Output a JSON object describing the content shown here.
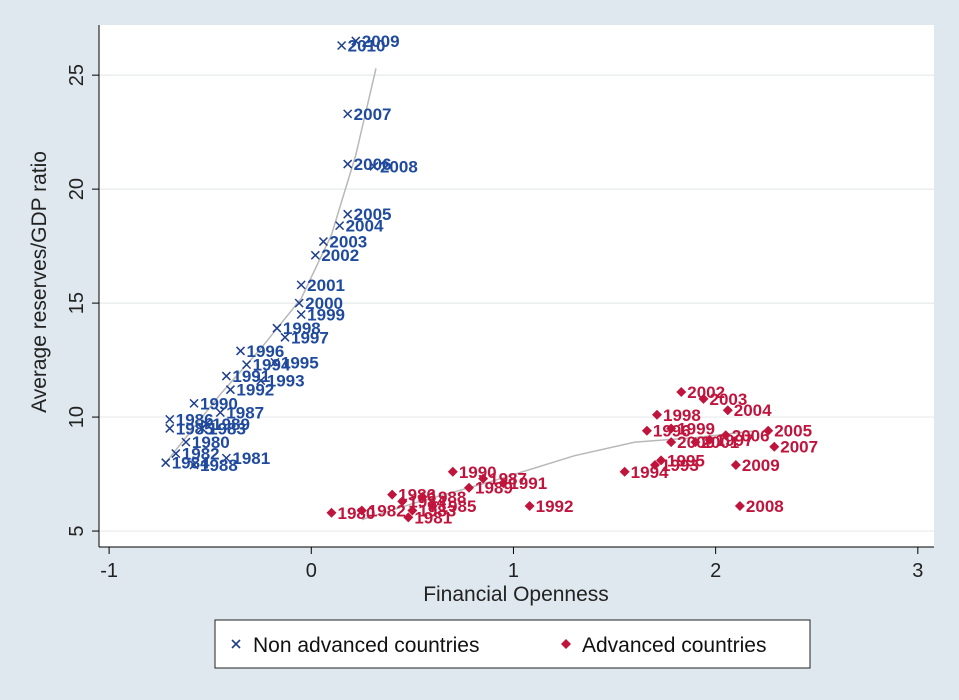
{
  "chart_data": {
    "type": "scatter",
    "xlabel": "Financial Openness",
    "ylabel": "Average reserves/GDP ratio",
    "xlim": [
      -1.05,
      3.08
    ],
    "ylim": [
      4.3,
      27.2
    ],
    "xticks": [
      -1,
      0,
      1,
      2,
      3
    ],
    "yticks": [
      5,
      10,
      15,
      20,
      25
    ],
    "grid": "horizontal",
    "legend_position": "bottom",
    "colors": {
      "non_advanced": "#1f3f8c",
      "non_advanced_label": "#1f4a9e",
      "advanced": "#c0143c",
      "fit_line": "#b8b8b8",
      "plot_bg": "#ffffff",
      "page_bg": "#dfe8ee"
    },
    "series": [
      {
        "name": "Non advanced countries",
        "marker": "x",
        "points": [
          {
            "x": 0.22,
            "y": 26.5,
            "label": "2009"
          },
          {
            "x": 0.15,
            "y": 26.3,
            "label": "2010"
          },
          {
            "x": 0.18,
            "y": 23.3,
            "label": "2007"
          },
          {
            "x": 0.31,
            "y": 21.0,
            "label": "2008"
          },
          {
            "x": 0.18,
            "y": 21.1,
            "label": "2006"
          },
          {
            "x": 0.18,
            "y": 18.9,
            "label": "2005"
          },
          {
            "x": 0.14,
            "y": 18.4,
            "label": "2004"
          },
          {
            "x": 0.06,
            "y": 17.7,
            "label": "2003"
          },
          {
            "x": 0.02,
            "y": 17.1,
            "label": "2002"
          },
          {
            "x": -0.05,
            "y": 15.8,
            "label": "2001"
          },
          {
            "x": -0.06,
            "y": 15.0,
            "label": "2000"
          },
          {
            "x": -0.05,
            "y": 14.5,
            "label": "1999"
          },
          {
            "x": -0.17,
            "y": 13.9,
            "label": "1998"
          },
          {
            "x": -0.13,
            "y": 13.5,
            "label": "1997"
          },
          {
            "x": -0.35,
            "y": 12.9,
            "label": "1996"
          },
          {
            "x": -0.18,
            "y": 12.4,
            "label": "1995"
          },
          {
            "x": -0.32,
            "y": 12.3,
            "label": "1994"
          },
          {
            "x": -0.42,
            "y": 11.8,
            "label": "1991"
          },
          {
            "x": -0.25,
            "y": 11.6,
            "label": "1993"
          },
          {
            "x": -0.4,
            "y": 11.2,
            "label": "1992"
          },
          {
            "x": -0.58,
            "y": 10.6,
            "label": "1990"
          },
          {
            "x": -0.45,
            "y": 10.2,
            "label": "1987"
          },
          {
            "x": -0.7,
            "y": 9.9,
            "label": "1986"
          },
          {
            "x": -0.52,
            "y": 9.7,
            "label": "1989"
          },
          {
            "x": -0.7,
            "y": 9.5,
            "label": "1985"
          },
          {
            "x": -0.54,
            "y": 9.5,
            "label": "1983"
          },
          {
            "x": -0.62,
            "y": 8.9,
            "label": "1980"
          },
          {
            "x": -0.67,
            "y": 8.4,
            "label": "1982"
          },
          {
            "x": -0.42,
            "y": 8.2,
            "label": "1981"
          },
          {
            "x": -0.72,
            "y": 8.0,
            "label": "1984"
          },
          {
            "x": -0.58,
            "y": 7.9,
            "label": "1988"
          }
        ]
      },
      {
        "name": "Advanced countries",
        "marker": "diamond",
        "points": [
          {
            "x": 1.83,
            "y": 11.1,
            "label": "2002"
          },
          {
            "x": 1.94,
            "y": 10.8,
            "label": "2003"
          },
          {
            "x": 2.06,
            "y": 10.3,
            "label": "2004"
          },
          {
            "x": 1.71,
            "y": 10.1,
            "label": "1998"
          },
          {
            "x": 2.26,
            "y": 9.4,
            "label": "2005"
          },
          {
            "x": 1.66,
            "y": 9.4,
            "label": "1996"
          },
          {
            "x": 1.78,
            "y": 9.5,
            "label": "1999"
          },
          {
            "x": 2.05,
            "y": 9.2,
            "label": "2006"
          },
          {
            "x": 1.97,
            "y": 9.0,
            "label": "1997"
          },
          {
            "x": 1.9,
            "y": 8.9,
            "label": "2001"
          },
          {
            "x": 1.78,
            "y": 8.9,
            "label": "2000"
          },
          {
            "x": 2.29,
            "y": 8.7,
            "label": "2007"
          },
          {
            "x": 1.73,
            "y": 8.1,
            "label": "1995"
          },
          {
            "x": 1.55,
            "y": 7.6,
            "label": "1994"
          },
          {
            "x": 1.7,
            "y": 7.9,
            "label": "1993"
          },
          {
            "x": 2.1,
            "y": 7.9,
            "label": "2009"
          },
          {
            "x": 0.7,
            "y": 7.6,
            "label": "1990"
          },
          {
            "x": 0.85,
            "y": 7.3,
            "label": "1987"
          },
          {
            "x": 0.95,
            "y": 7.1,
            "label": "1991"
          },
          {
            "x": 0.78,
            "y": 6.9,
            "label": "1989"
          },
          {
            "x": 0.4,
            "y": 6.6,
            "label": "1986"
          },
          {
            "x": 0.55,
            "y": 6.5,
            "label": "1988"
          },
          {
            "x": 0.45,
            "y": 6.3,
            "label": "1984"
          },
          {
            "x": 0.6,
            "y": 6.1,
            "label": "1985"
          },
          {
            "x": 1.08,
            "y": 6.1,
            "label": "1992"
          },
          {
            "x": 0.5,
            "y": 5.9,
            "label": "1983"
          },
          {
            "x": 0.25,
            "y": 5.9,
            "label": "1982"
          },
          {
            "x": 2.12,
            "y": 6.1,
            "label": "2008"
          },
          {
            "x": 0.1,
            "y": 5.8,
            "label": "1980"
          },
          {
            "x": 0.48,
            "y": 5.6,
            "label": "1981"
          }
        ]
      }
    ],
    "fit_lines": [
      {
        "series": "Non advanced countries",
        "points": [
          [
            -0.72,
            8.0
          ],
          [
            -0.45,
            11.0
          ],
          [
            -0.25,
            13.0
          ],
          [
            -0.05,
            15.2
          ],
          [
            0.1,
            18.0
          ],
          [
            0.22,
            21.5
          ],
          [
            0.32,
            25.3
          ]
        ]
      },
      {
        "series": "Advanced countries",
        "points": [
          [
            0.25,
            5.5
          ],
          [
            0.5,
            6.2
          ],
          [
            0.9,
            7.2
          ],
          [
            1.3,
            8.3
          ],
          [
            1.6,
            8.9
          ],
          [
            1.9,
            9.1
          ],
          [
            2.2,
            9.4
          ]
        ]
      }
    ]
  }
}
